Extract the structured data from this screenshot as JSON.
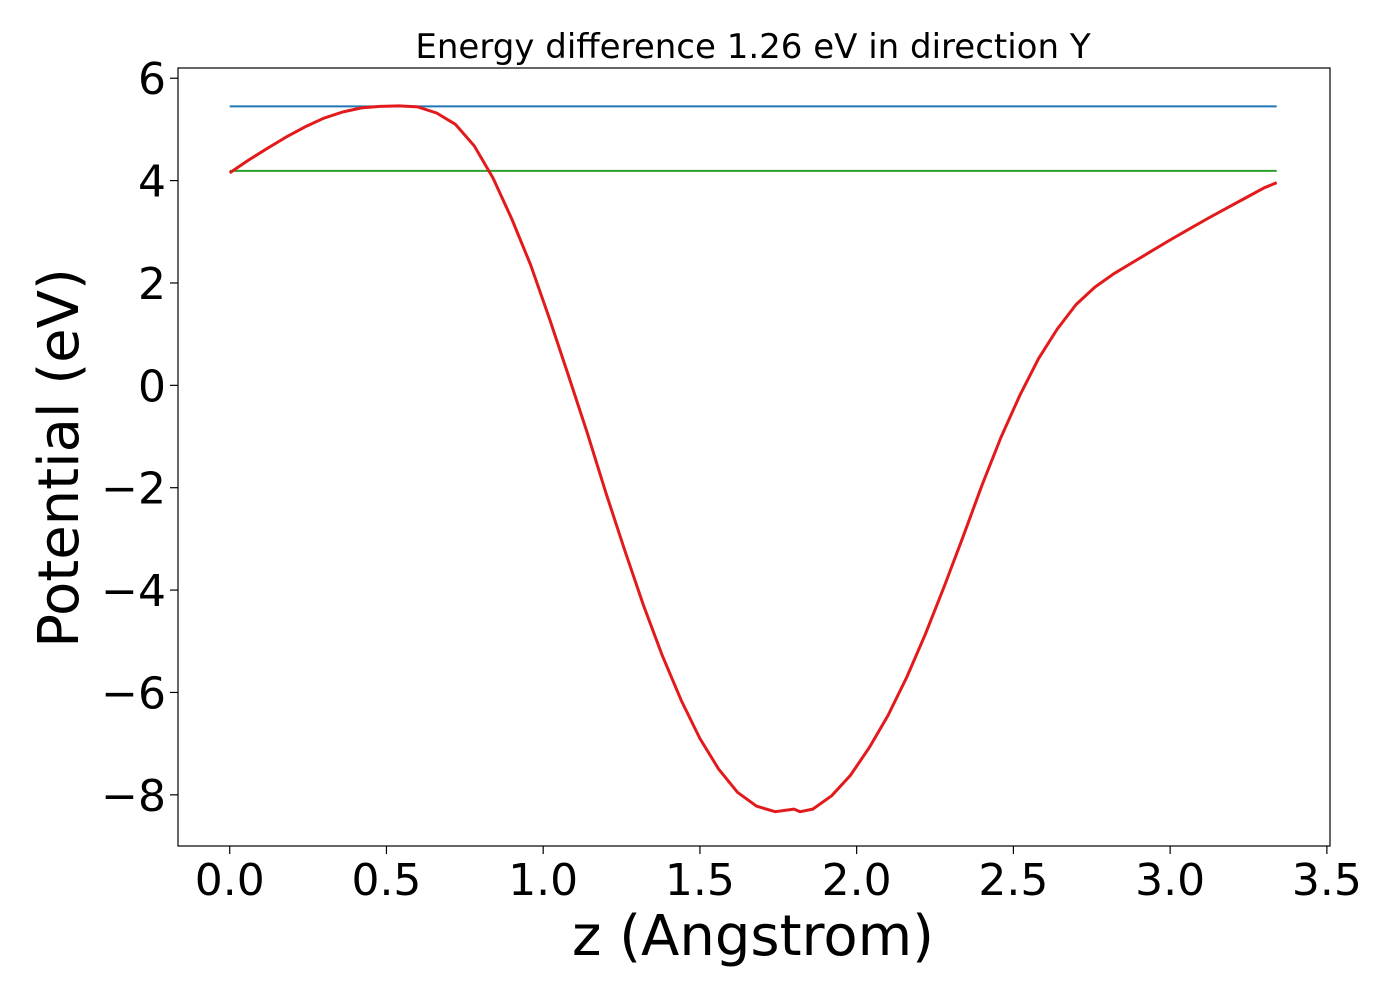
{
  "chart_data": {
    "type": "line",
    "title": "Energy difference 1.26 eV in direction Y",
    "xlabel": "z (Angstrom)",
    "ylabel": "Potential (eV)",
    "xlim": [
      -0.165,
      3.51
    ],
    "ylim": [
      -9.0,
      6.2
    ],
    "grid": false,
    "xticks": [
      0.0,
      0.5,
      1.0,
      1.5,
      2.0,
      2.5,
      3.0,
      3.5
    ],
    "xtick_labels": [
      "0.0",
      "0.5",
      "1.0",
      "1.5",
      "2.0",
      "2.5",
      "3.0",
      "3.5"
    ],
    "yticks": [
      6,
      4,
      2,
      0,
      -2,
      -4,
      -6,
      -8
    ],
    "ytick_labels": [
      "6",
      "4",
      "2",
      "0",
      "−2",
      "−4",
      "−6",
      "−8"
    ],
    "hlines": [
      {
        "y": 5.45,
        "x": [
          0.0,
          3.34
        ],
        "color": "#1f77b4"
      },
      {
        "y": 4.19,
        "x": [
          0.0,
          3.34
        ],
        "color": "#2ca02c"
      }
    ],
    "series": [
      {
        "color": "#e31a1c",
        "x": [
          0.0,
          0.06,
          0.12,
          0.18,
          0.24,
          0.3,
          0.36,
          0.42,
          0.48,
          0.54,
          0.6,
          0.66,
          0.72,
          0.78,
          0.84,
          0.9,
          0.96,
          1.02,
          1.08,
          1.14,
          1.2,
          1.26,
          1.32,
          1.38,
          1.44,
          1.5,
          1.56,
          1.62,
          1.68,
          1.74,
          1.8,
          1.82,
          1.86,
          1.92,
          1.98,
          2.04,
          2.1,
          2.16,
          2.22,
          2.28,
          2.34,
          2.4,
          2.46,
          2.52,
          2.58,
          2.64,
          2.7,
          2.76,
          2.82,
          2.88,
          2.94,
          3.0,
          3.06,
          3.12,
          3.18,
          3.24,
          3.3,
          3.34
        ],
        "y": [
          4.15,
          4.4,
          4.63,
          4.85,
          5.05,
          5.22,
          5.34,
          5.42,
          5.45,
          5.46,
          5.44,
          5.32,
          5.1,
          4.68,
          4.05,
          3.25,
          2.35,
          1.3,
          0.2,
          -0.92,
          -2.1,
          -3.22,
          -4.3,
          -5.28,
          -6.15,
          -6.9,
          -7.5,
          -7.95,
          -8.22,
          -8.33,
          -8.28,
          -8.33,
          -8.28,
          -8.02,
          -7.62,
          -7.08,
          -6.45,
          -5.7,
          -4.85,
          -3.92,
          -2.95,
          -1.95,
          -1.02,
          -0.2,
          0.52,
          1.1,
          1.58,
          1.92,
          2.18,
          2.4,
          2.62,
          2.84,
          3.05,
          3.26,
          3.46,
          3.66,
          3.86,
          3.96
        ]
      }
    ]
  }
}
